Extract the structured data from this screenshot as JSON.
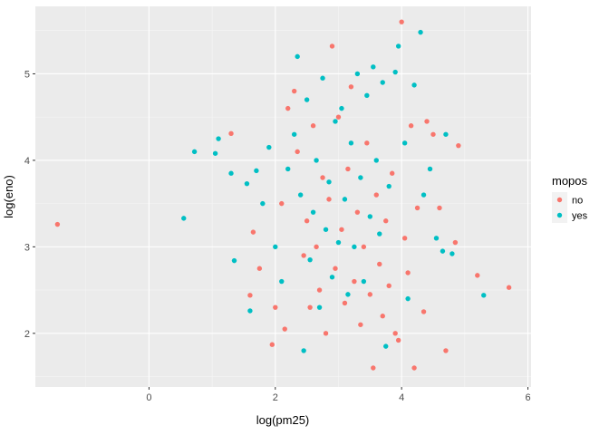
{
  "chart_data": {
    "type": "scatter",
    "xlabel": "log(pm25)",
    "ylabel": "log(eno)",
    "xlim": [
      -1.8,
      6.05
    ],
    "ylim": [
      1.38,
      5.78
    ],
    "x_ticks": [
      0,
      2,
      4,
      6
    ],
    "y_ticks": [
      2,
      3,
      4,
      5
    ],
    "grid": true,
    "legend": {
      "title": "mopos",
      "position": "right",
      "entries": [
        {
          "label": "no",
          "color": "#F8766D"
        },
        {
          "label": "yes",
          "color": "#00BFC4"
        }
      ]
    },
    "series": [
      {
        "name": "no",
        "color": "#F8766D",
        "points": [
          [
            -1.45,
            3.26
          ],
          [
            1.3,
            4.31
          ],
          [
            1.6,
            2.44
          ],
          [
            1.65,
            3.17
          ],
          [
            1.75,
            2.75
          ],
          [
            1.95,
            1.87
          ],
          [
            2.0,
            2.3
          ],
          [
            2.1,
            3.5
          ],
          [
            2.15,
            2.05
          ],
          [
            2.2,
            4.6
          ],
          [
            2.3,
            4.8
          ],
          [
            2.35,
            4.1
          ],
          [
            2.45,
            2.9
          ],
          [
            2.5,
            3.3
          ],
          [
            2.55,
            2.3
          ],
          [
            2.6,
            4.4
          ],
          [
            2.65,
            3.0
          ],
          [
            2.7,
            2.5
          ],
          [
            2.75,
            3.8
          ],
          [
            2.8,
            2.0
          ],
          [
            2.85,
            3.55
          ],
          [
            2.9,
            5.32
          ],
          [
            2.95,
            2.75
          ],
          [
            3.0,
            4.5
          ],
          [
            3.05,
            3.2
          ],
          [
            3.1,
            2.35
          ],
          [
            3.15,
            3.9
          ],
          [
            3.2,
            4.85
          ],
          [
            3.25,
            2.6
          ],
          [
            3.3,
            3.4
          ],
          [
            3.35,
            2.1
          ],
          [
            3.4,
            3.0
          ],
          [
            3.45,
            4.2
          ],
          [
            3.5,
            2.45
          ],
          [
            3.55,
            1.6
          ],
          [
            3.6,
            3.6
          ],
          [
            3.65,
            2.8
          ],
          [
            3.7,
            2.2
          ],
          [
            3.75,
            3.3
          ],
          [
            3.8,
            2.55
          ],
          [
            3.85,
            3.85
          ],
          [
            3.9,
            2.0
          ],
          [
            3.95,
            1.92
          ],
          [
            4.0,
            5.6
          ],
          [
            4.05,
            3.1
          ],
          [
            4.1,
            2.7
          ],
          [
            4.15,
            4.4
          ],
          [
            4.2,
            1.6
          ],
          [
            4.25,
            3.45
          ],
          [
            4.35,
            2.25
          ],
          [
            4.4,
            4.45
          ],
          [
            4.5,
            4.3
          ],
          [
            4.6,
            3.45
          ],
          [
            4.7,
            1.8
          ],
          [
            4.85,
            3.05
          ],
          [
            4.9,
            4.17
          ],
          [
            5.2,
            2.67
          ],
          [
            5.7,
            2.53
          ]
        ]
      },
      {
        "name": "yes",
        "color": "#00BFC4",
        "points": [
          [
            0.55,
            3.33
          ],
          [
            0.72,
            4.1
          ],
          [
            1.05,
            4.08
          ],
          [
            1.1,
            4.25
          ],
          [
            1.3,
            3.85
          ],
          [
            1.35,
            2.84
          ],
          [
            1.55,
            3.73
          ],
          [
            1.6,
            2.26
          ],
          [
            1.7,
            3.88
          ],
          [
            1.8,
            3.5
          ],
          [
            1.9,
            4.15
          ],
          [
            2.0,
            3.0
          ],
          [
            2.1,
            2.6
          ],
          [
            2.2,
            3.9
          ],
          [
            2.3,
            4.3
          ],
          [
            2.35,
            5.2
          ],
          [
            2.4,
            3.6
          ],
          [
            2.45,
            1.8
          ],
          [
            2.5,
            4.7
          ],
          [
            2.55,
            2.85
          ],
          [
            2.6,
            3.4
          ],
          [
            2.65,
            4.0
          ],
          [
            2.7,
            2.3
          ],
          [
            2.75,
            4.95
          ],
          [
            2.8,
            3.2
          ],
          [
            2.85,
            3.75
          ],
          [
            2.9,
            2.65
          ],
          [
            2.95,
            4.45
          ],
          [
            3.0,
            3.05
          ],
          [
            3.05,
            4.6
          ],
          [
            3.1,
            3.55
          ],
          [
            3.15,
            2.45
          ],
          [
            3.2,
            4.2
          ],
          [
            3.25,
            3.0
          ],
          [
            3.3,
            5.0
          ],
          [
            3.35,
            3.8
          ],
          [
            3.4,
            2.6
          ],
          [
            3.45,
            4.75
          ],
          [
            3.5,
            3.35
          ],
          [
            3.55,
            5.08
          ],
          [
            3.6,
            4.0
          ],
          [
            3.65,
            3.15
          ],
          [
            3.7,
            4.9
          ],
          [
            3.75,
            1.85
          ],
          [
            3.8,
            3.7
          ],
          [
            3.9,
            5.02
          ],
          [
            3.95,
            5.32
          ],
          [
            4.05,
            4.2
          ],
          [
            4.1,
            2.4
          ],
          [
            4.2,
            4.87
          ],
          [
            4.3,
            5.48
          ],
          [
            4.35,
            3.6
          ],
          [
            4.45,
            3.9
          ],
          [
            4.55,
            3.1
          ],
          [
            4.65,
            2.95
          ],
          [
            4.7,
            4.3
          ],
          [
            4.8,
            2.92
          ],
          [
            5.3,
            2.44
          ]
        ]
      }
    ]
  }
}
